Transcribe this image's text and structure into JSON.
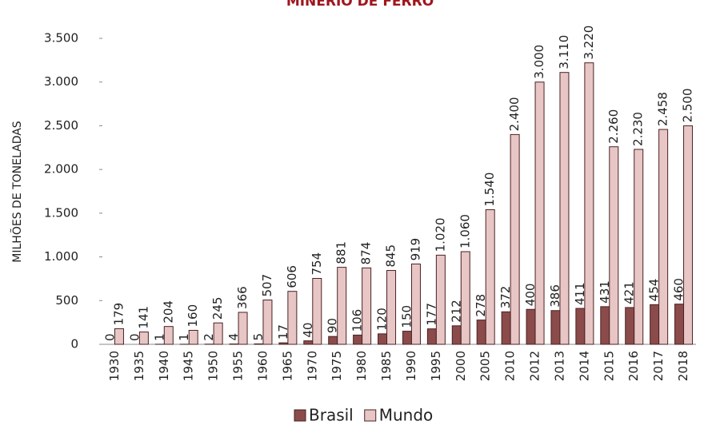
{
  "chart_data": {
    "type": "bar",
    "title": "MINÉRIO DE FERRO",
    "y_label": "MILHÕES DE TONELADAS",
    "categories": [
      "1930",
      "1935",
      "1940",
      "1945",
      "1950",
      "1955",
      "1960",
      "1965",
      "1970",
      "1975",
      "1980",
      "1985",
      "1990",
      "1995",
      "2000",
      "2005",
      "2010",
      "2012",
      "2013",
      "2014",
      "2015",
      "2016",
      "2017",
      "2018"
    ],
    "series": [
      {
        "name": "Brasil",
        "color": "#8b4b4b",
        "values": [
          0,
          0,
          1,
          1,
          2,
          4,
          5,
          17,
          40,
          90,
          106,
          120,
          150,
          177,
          212,
          278,
          372,
          400,
          386,
          411,
          431,
          421,
          454,
          460
        ]
      },
      {
        "name": "Mundo",
        "color": "#e8c6c6",
        "values": [
          179,
          141,
          204,
          160,
          245,
          366,
          507,
          606,
          754,
          881,
          874,
          845,
          919,
          1020,
          1060,
          1540,
          2400,
          3000,
          3110,
          3220,
          2260,
          2230,
          2458,
          2500
        ],
        "value_labels": [
          "179",
          "141",
          "204",
          "160",
          "245",
          "366",
          "507",
          "606",
          "754",
          "881",
          "874",
          "845",
          "919",
          "1.020",
          "1.060",
          "1.540",
          "2.400",
          "3.000",
          "3.110",
          "3.220",
          "2.260",
          "2.230",
          "2.458",
          "2.500"
        ]
      }
    ],
    "ylim": [
      0,
      3500
    ],
    "yticks": [
      0,
      500,
      {
        "value": 1000,
        "label": "1.000"
      },
      {
        "value": 1500,
        "label": "1.500"
      },
      {
        "value": 2000,
        "label": "2.000"
      },
      {
        "value": 2500,
        "label": "2.500"
      },
      {
        "value": 3000,
        "label": "3.000"
      },
      {
        "value": 3500,
        "label": "3.500"
      }
    ],
    "legend": "bottom"
  }
}
